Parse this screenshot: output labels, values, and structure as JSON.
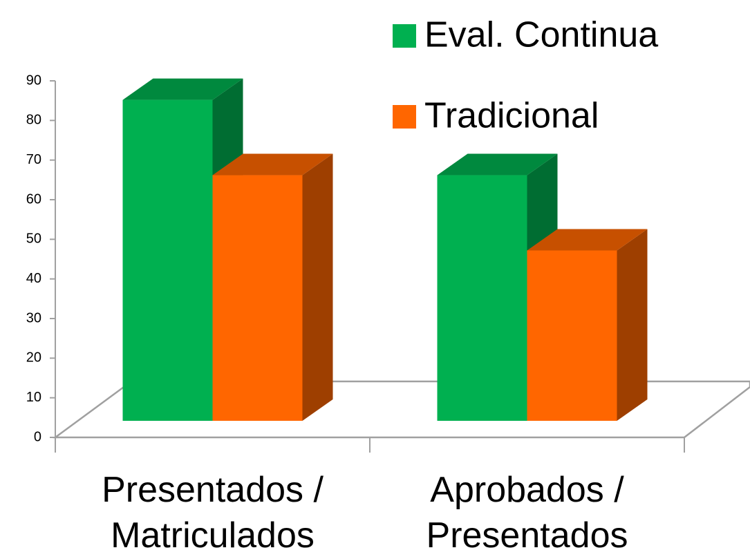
{
  "chart_data": {
    "type": "bar3d",
    "categories": [
      "Presentados / Matriculados",
      "Aprobados / Presentados"
    ],
    "series": [
      {
        "name": "Eval. Continua",
        "color": "#00b050",
        "values": [
          81,
          62
        ]
      },
      {
        "name": "Tradicional",
        "color": "#ff6600",
        "values": [
          62,
          43
        ]
      }
    ],
    "ylim": [
      0,
      90
    ],
    "yticks": [
      0,
      10,
      20,
      30,
      40,
      50,
      60,
      70,
      80,
      90
    ],
    "legend": "top-right"
  }
}
